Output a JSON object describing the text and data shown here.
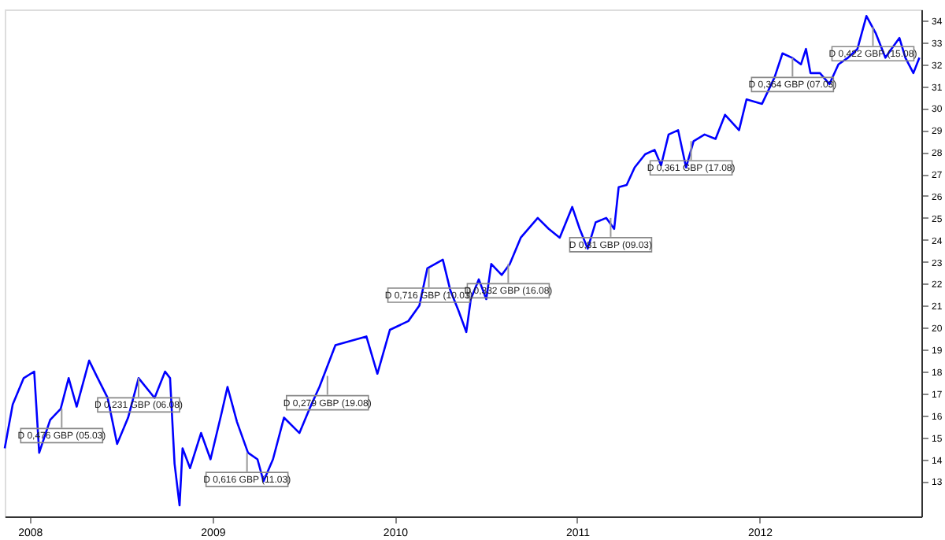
{
  "chart_data": {
    "type": "line",
    "x": [
      "2007-11-12",
      "2007-11-28",
      "2007-12-20",
      "2008-01-10",
      "2008-01-20",
      "2008-02-11",
      "2008-03-03",
      "2008-03-19",
      "2008-04-04",
      "2008-04-29",
      "2008-05-14",
      "2008-06-05",
      "2008-06-24",
      "2008-07-16",
      "2008-08-06",
      "2008-09-07",
      "2008-09-28",
      "2008-10-08",
      "2008-10-17",
      "2008-10-27",
      "2008-11-02",
      "2008-11-17",
      "2008-12-09",
      "2008-12-28",
      "2009-01-19",
      "2009-01-31",
      "2009-02-19",
      "2009-03-13",
      "2009-04-01",
      "2009-04-13",
      "2009-05-02",
      "2009-05-24",
      "2009-06-24",
      "2009-07-16",
      "2009-08-03",
      "2009-09-04",
      "2009-10-05",
      "2009-11-05",
      "2009-11-27",
      "2009-12-22",
      "2010-01-28",
      "2010-02-19",
      "2010-03-07",
      "2010-04-07",
      "2010-04-22",
      "2010-05-08",
      "2010-05-24",
      "2010-06-02",
      "2010-06-18",
      "2010-07-03",
      "2010-07-13",
      "2010-08-03",
      "2010-08-19",
      "2010-09-10",
      "2010-09-25",
      "2010-10-14",
      "2010-11-05",
      "2010-11-27",
      "2010-12-22",
      "2011-01-06",
      "2011-01-22",
      "2011-02-07",
      "2011-02-28",
      "2011-03-16",
      "2011-03-25",
      "2011-04-10",
      "2011-04-26",
      "2011-05-17",
      "2011-06-05",
      "2011-06-18",
      "2011-07-03",
      "2011-07-22",
      "2011-08-07",
      "2011-08-22",
      "2011-09-13",
      "2011-10-05",
      "2011-10-24",
      "2011-11-21",
      "2011-12-06",
      "2012-01-06",
      "2012-01-31",
      "2012-02-16",
      "2012-03-06",
      "2012-03-24",
      "2012-04-03",
      "2012-04-12",
      "2012-05-01",
      "2012-05-20",
      "2012-06-07",
      "2012-06-26",
      "2012-07-15",
      "2012-08-02",
      "2012-08-21",
      "2012-09-09",
      "2012-09-21",
      "2012-10-07",
      "2012-10-19",
      "2012-11-04",
      "2012-11-16"
    ],
    "series": [
      {
        "color": "#0000ff",
        "values": [
          14.5,
          16.5,
          17.7,
          18.0,
          14.3,
          15.8,
          16.3,
          17.7,
          16.4,
          18.5,
          17.8,
          16.8,
          14.7,
          15.9,
          17.7,
          16.8,
          18.0,
          17.7,
          13.8,
          11.9,
          14.5,
          13.6,
          15.2,
          14.0,
          16.1,
          17.3,
          15.7,
          14.3,
          14.0,
          13.0,
          14.0,
          15.9,
          15.2,
          16.4,
          17.3,
          19.2,
          19.4,
          19.6,
          17.9,
          19.9,
          20.3,
          21.0,
          22.7,
          23.1,
          21.7,
          20.8,
          19.8,
          21.3,
          22.2,
          21.3,
          22.9,
          22.4,
          22.9,
          24.1,
          24.5,
          25.0,
          24.5,
          24.1,
          25.5,
          24.5,
          23.6,
          24.8,
          25.0,
          24.5,
          26.4,
          26.5,
          27.3,
          27.9,
          28.1,
          27.4,
          28.8,
          29.0,
          27.3,
          28.5,
          28.8,
          28.6,
          29.7,
          29.0,
          30.4,
          30.2,
          31.4,
          32.5,
          32.3,
          32.0,
          32.7,
          31.6,
          31.6,
          31.1,
          32.0,
          32.3,
          32.7,
          34.2,
          33.4,
          32.3,
          32.7,
          33.2,
          32.3,
          31.6,
          32.3
        ]
      }
    ],
    "xlim": [
      "2007-11-12",
      "2012-11-20"
    ],
    "xticks": [
      "2008",
      "2009",
      "2010",
      "2011",
      "2012"
    ],
    "ylim": [
      11.4,
      34.5
    ],
    "yticks": [
      13,
      14,
      15,
      16,
      17,
      18,
      19,
      20,
      21,
      22,
      23,
      24,
      25,
      26,
      27,
      28,
      29,
      30,
      31,
      32,
      33,
      34
    ],
    "grid": false,
    "annotations": [
      {
        "text": "D 0,476 GBP (05.03)",
        "x": "2008-03-05",
        "y": 16.3
      },
      {
        "text": "D 0,231 GBP (06.08)",
        "x": "2008-08-06",
        "y": 17.7
      },
      {
        "text": "D 0,616 GBP (11.03)",
        "x": "2009-03-11",
        "y": 14.3
      },
      {
        "text": "D 0,279 GBP (19.08)",
        "x": "2009-08-19",
        "y": 17.8
      },
      {
        "text": "D 0,716 GBP (10.03)",
        "x": "2010-03-10",
        "y": 22.7
      },
      {
        "text": "D 0,332 GBP (16.08)",
        "x": "2010-08-16",
        "y": 22.9
      },
      {
        "text": "D 0,81 GBP (09.03)",
        "x": "2011-03-09",
        "y": 25.0
      },
      {
        "text": "D 0,361 GBP (17.08)",
        "x": "2011-08-17",
        "y": 28.5
      },
      {
        "text": "D 0,364 GBP (07.03)",
        "x": "2012-03-07",
        "y": 32.3
      },
      {
        "text": "D 0,422 GBP (15.08)",
        "x": "2012-08-15",
        "y": 33.7
      }
    ]
  }
}
